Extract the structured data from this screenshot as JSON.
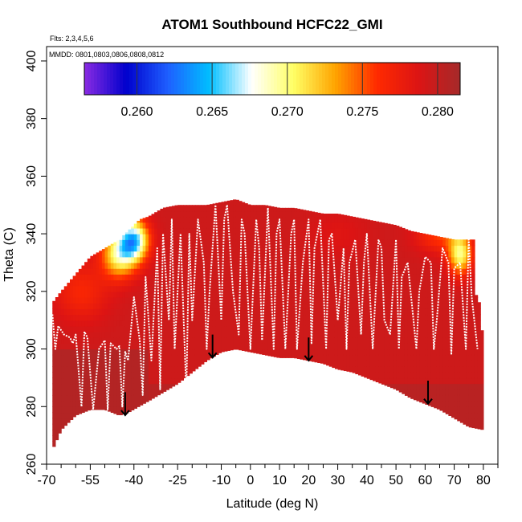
{
  "chart_data": {
    "type": "heatmap",
    "title": "ATOM1 Southbound HCFC22_GMI",
    "flights_note": "Flts: 2,3,4,5,6",
    "dates_note": "MMDD: 0801,0803,0806,0808,0812",
    "xlabel": "Latitude (deg N)",
    "ylabel": "Theta (C)",
    "xlim": [
      -70,
      85
    ],
    "ylim": [
      260,
      405
    ],
    "x_ticks": [
      -70,
      -55,
      -40,
      -25,
      -10,
      0,
      10,
      20,
      30,
      40,
      50,
      60,
      70,
      80
    ],
    "x_minor_ticks": [
      -65,
      -60,
      -50,
      -45,
      -35,
      -30,
      -20,
      -15,
      -5,
      5,
      15,
      25,
      35,
      45,
      55,
      65,
      75,
      85
    ],
    "y_ticks": [
      260,
      280,
      300,
      320,
      340,
      360,
      380,
      400
    ],
    "colorbar": {
      "range": [
        0.2565,
        0.2815
      ],
      "ticks": [
        "0.260",
        "0.265",
        "0.270",
        "0.275",
        "0.280"
      ],
      "tick_values": [
        0.26,
        0.265,
        0.27,
        0.275,
        0.28
      ],
      "colors": [
        "#8a2be2",
        "#0000cd",
        "#1e5fff",
        "#00bfff",
        "#ffffff",
        "#ffff66",
        "#ffa500",
        "#ff2a00",
        "#dc1414",
        "#a52a2a"
      ]
    },
    "domain_top": [
      [
        -68,
        316
      ],
      [
        -65,
        320
      ],
      [
        -60,
        326
      ],
      [
        -55,
        332
      ],
      [
        -50,
        335
      ],
      [
        -45,
        338
      ],
      [
        -42,
        341
      ],
      [
        -38,
        345
      ],
      [
        -35,
        346
      ],
      [
        -30,
        349
      ],
      [
        -25,
        350
      ],
      [
        -20,
        350
      ],
      [
        -15,
        350
      ],
      [
        -10,
        351
      ],
      [
        -5,
        352
      ],
      [
        0,
        350
      ],
      [
        5,
        350
      ],
      [
        10,
        349
      ],
      [
        15,
        349
      ],
      [
        20,
        348
      ],
      [
        25,
        347
      ],
      [
        30,
        347
      ],
      [
        35,
        346
      ],
      [
        40,
        345
      ],
      [
        45,
        344
      ],
      [
        50,
        343
      ],
      [
        55,
        341
      ],
      [
        60,
        340
      ],
      [
        65,
        339
      ],
      [
        70,
        338
      ],
      [
        75,
        338
      ],
      [
        77,
        338
      ],
      [
        77,
        320
      ],
      [
        79,
        315
      ],
      [
        80,
        298
      ]
    ],
    "domain_bottom": [
      [
        -68,
        265
      ],
      [
        -65,
        272
      ],
      [
        -60,
        277
      ],
      [
        -55,
        279
      ],
      [
        -50,
        279
      ],
      [
        -45,
        277
      ],
      [
        -42,
        278
      ],
      [
        -35,
        282
      ],
      [
        -30,
        285
      ],
      [
        -25,
        288
      ],
      [
        -20,
        292
      ],
      [
        -15,
        296
      ],
      [
        -10,
        299
      ],
      [
        -5,
        300
      ],
      [
        0,
        299
      ],
      [
        5,
        298
      ],
      [
        10,
        297
      ],
      [
        15,
        297
      ],
      [
        20,
        296
      ],
      [
        25,
        295
      ],
      [
        30,
        293
      ],
      [
        35,
        292
      ],
      [
        40,
        290
      ],
      [
        45,
        288
      ],
      [
        50,
        286
      ],
      [
        55,
        283
      ],
      [
        60,
        281
      ],
      [
        65,
        279
      ],
      [
        70,
        276
      ],
      [
        75,
        273
      ],
      [
        80,
        272
      ]
    ],
    "high_value_zones": [
      {
        "lat": [
          -68,
          -35
        ],
        "theta_min": 300,
        "value": 0.2808
      },
      {
        "lat": [
          -35,
          80
        ],
        "theta_min": 288,
        "value": 0.2805
      }
    ],
    "field_features": [
      {
        "lat": -58,
        "theta": 320,
        "value": 0.2765,
        "lat_scale": 9,
        "theta_scale": 10
      },
      {
        "lat": -45,
        "theta": 333,
        "value": 0.27,
        "lat_scale": 6,
        "theta_scale": 8
      },
      {
        "lat": -40,
        "theta": 338,
        "value": 0.2665,
        "lat_scale": 5,
        "theta_scale": 7
      },
      {
        "lat": 72,
        "theta": 333,
        "value": 0.27,
        "lat_scale": 4,
        "theta_scale": 7
      },
      {
        "lat": 65,
        "theta": 340,
        "value": 0.2755,
        "lat_scale": 8,
        "theta_scale": 6
      },
      {
        "lat": 30,
        "theta": 340,
        "value": 0.2785,
        "lat_scale": 10,
        "theta_scale": 8
      }
    ],
    "flight_track": {
      "lat": [
        -68,
        -67,
        -66,
        -64,
        -62,
        -61,
        -60,
        -58,
        -57,
        -56,
        -54,
        -52,
        -50,
        -49,
        -48,
        -46,
        -45,
        -44,
        -43,
        -42,
        -40,
        -38,
        -37,
        -36,
        -34,
        -32,
        -31,
        -30,
        -28,
        -27,
        -26,
        -24,
        -22,
        -21,
        -20,
        -18,
        -16,
        -15,
        -14,
        -12,
        -10,
        -9,
        -8,
        -6,
        -4,
        -3,
        -2,
        0,
        2,
        3,
        4,
        6,
        8,
        9,
        10,
        12,
        14,
        15,
        16,
        18,
        20,
        21,
        22,
        24,
        26,
        27,
        28,
        30,
        32,
        33,
        34,
        36,
        38,
        39,
        40,
        42,
        44,
        45,
        46,
        48,
        50,
        51,
        52,
        54,
        56,
        57,
        58,
        60,
        62,
        63,
        64,
        66,
        68,
        69,
        70,
        72,
        74,
        75,
        76,
        78
      ],
      "theta": [
        312,
        300,
        308,
        305,
        304,
        302,
        305,
        280,
        306,
        304,
        279,
        300,
        303,
        279,
        302,
        300,
        301,
        280,
        299,
        296,
        318,
        303,
        284,
        325,
        296,
        335,
        286,
        340,
        310,
        345,
        300,
        340,
        285,
        340,
        310,
        345,
        330,
        300,
        320,
        350,
        310,
        345,
        350,
        320,
        305,
        345,
        340,
        300,
        345,
        335,
        303,
        349,
        300,
        340,
        345,
        300,
        340,
        345,
        300,
        330,
        345,
        302,
        335,
        345,
        300,
        338,
        340,
        310,
        335,
        300,
        330,
        338,
        305,
        330,
        340,
        300,
        338,
        335,
        310,
        305,
        338,
        300,
        325,
        330,
        310,
        300,
        320,
        332,
        330,
        300,
        310,
        335,
        330,
        298,
        328,
        330,
        300,
        338,
        318,
        300
      ]
    },
    "profile_arrows": [
      {
        "lat": -43,
        "theta_top": 285,
        "theta_bottom": 277
      },
      {
        "lat": -13,
        "theta_top": 305,
        "theta_bottom": 297
      },
      {
        "lat": 20,
        "theta_top": 304,
        "theta_bottom": 296
      },
      {
        "lat": 61,
        "theta_top": 289,
        "theta_bottom": 281
      }
    ]
  }
}
